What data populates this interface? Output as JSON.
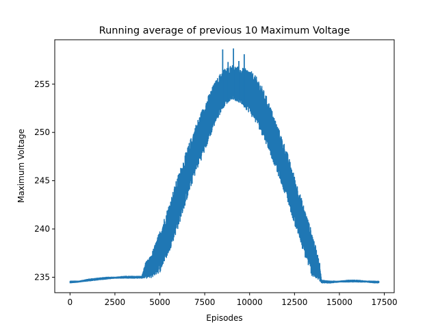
{
  "chart_data": {
    "type": "line",
    "title": "Running average of previous 10 Maximum Voltage",
    "xlabel": "Episodes",
    "ylabel": "Maximum Voltage",
    "xlim": [
      -850,
      18050
    ],
    "ylim": [
      233.4,
      259.6
    ],
    "xticks": [
      0,
      2500,
      5000,
      7500,
      10000,
      12500,
      15000,
      17500
    ],
    "yticks": [
      235,
      240,
      245,
      250,
      255
    ],
    "grid": false,
    "legend": "none",
    "series": [
      {
        "color": "#1f77b4",
        "x": [
          0,
          500,
          1000,
          1500,
          2000,
          2500,
          3000,
          3500,
          4000,
          4200,
          4500,
          5000,
          5500,
          6000,
          6500,
          7000,
          7500,
          8000,
          8500,
          9000,
          9500,
          10000,
          10500,
          11000,
          11500,
          12000,
          12500,
          13000,
          13500,
          13900,
          14000,
          14500,
          15000,
          15500,
          16000,
          16500,
          17000,
          17200
        ],
        "lower": [
          234.4,
          234.5,
          234.6,
          234.7,
          234.8,
          234.9,
          234.9,
          234.9,
          234.9,
          234.9,
          234.9,
          235.5,
          237.5,
          240.0,
          243.0,
          245.8,
          248.0,
          250.5,
          252.5,
          253.5,
          253.0,
          252.0,
          250.5,
          248.5,
          246.0,
          243.5,
          240.5,
          237.5,
          235.0,
          234.6,
          234.4,
          234.4,
          234.5,
          234.5,
          234.5,
          234.5,
          234.4,
          234.4
        ],
        "upper": [
          234.6,
          234.6,
          234.8,
          234.9,
          235.0,
          235.0,
          235.1,
          235.1,
          235.1,
          236.5,
          237.2,
          239.8,
          242.5,
          245.5,
          248.2,
          250.8,
          253.0,
          255.0,
          256.5,
          257.0,
          256.7,
          256.5,
          255.5,
          253.5,
          251.0,
          248.5,
          245.5,
          242.5,
          239.5,
          236.5,
          234.7,
          234.6,
          234.6,
          234.7,
          234.7,
          234.6,
          234.6,
          234.6
        ],
        "peaks": [
          [
            8500,
            258.6
          ],
          [
            8800,
            257.3
          ],
          [
            9100,
            258.7
          ],
          [
            9400,
            257.4
          ],
          [
            9700,
            258.1
          ]
        ]
      }
    ]
  }
}
